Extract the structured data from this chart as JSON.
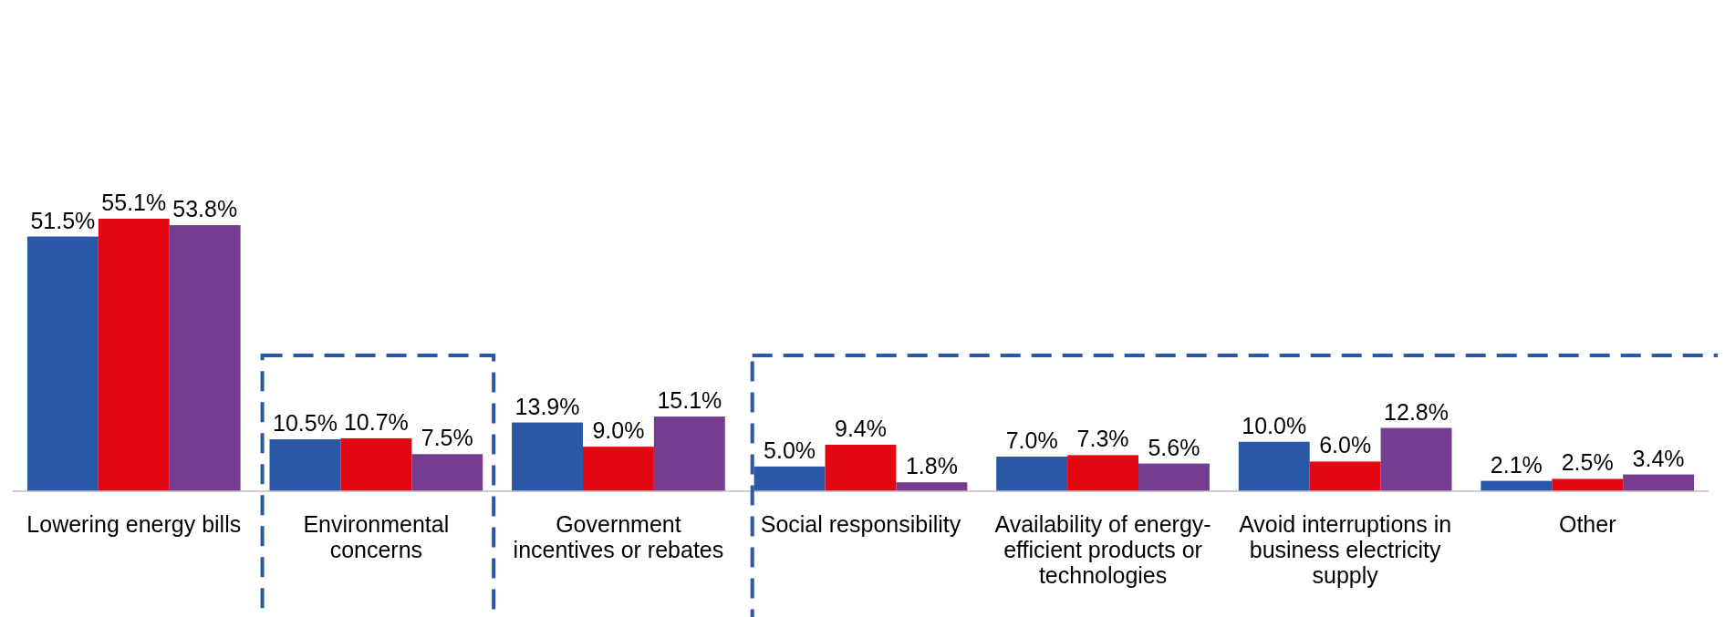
{
  "chart_data": {
    "type": "bar",
    "categories": [
      "Lowering energy bills",
      "Environmental concerns",
      "Government incentives or rebates",
      "Social responsibility",
      "Availability of energy-efficient products or technologies",
      "Avoid interruptions in business electricity supply",
      "Other"
    ],
    "series": [
      {
        "color": "#2a58a6",
        "values": [
          51.5,
          10.5,
          13.9,
          5.0,
          7.0,
          10.0,
          2.1
        ],
        "value_labels": [
          "51.5%",
          "10.5%",
          "13.9%",
          "5.0%",
          "7.0%",
          "10.0%",
          "2.1%"
        ]
      },
      {
        "color": "#e30613",
        "values": [
          55.1,
          10.7,
          9.0,
          9.4,
          7.3,
          6.0,
          2.5
        ],
        "value_labels": [
          "55.1%",
          "10.7%",
          "9.0%",
          "9.4%",
          "7.3%",
          "6.0%",
          "2.5%"
        ]
      },
      {
        "color": "#763c8f",
        "values": [
          53.8,
          7.5,
          15.1,
          1.8,
          5.6,
          12.8,
          3.4
        ],
        "value_labels": [
          "53.8%",
          "7.5%",
          "15.1%",
          "1.8%",
          "5.6%",
          "12.8%",
          "3.4%"
        ]
      }
    ]
  }
}
